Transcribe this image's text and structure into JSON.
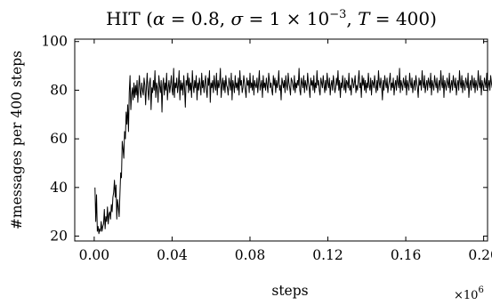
{
  "chart_data": {
    "type": "line",
    "title": {
      "prefix": "HIT (",
      "alpha_sym": "α",
      "alpha_val": " = 0.8, ",
      "sigma_sym": "σ",
      "sigma_val": " = 1 × 10",
      "sigma_exp": "−3",
      "sep": ", ",
      "T_sym": "T",
      "T_val": " = 400)"
    },
    "xlabel": "steps",
    "ylabel": "#messages per 400 steps",
    "x_multiplier": {
      "base": "×10",
      "exp": "6"
    },
    "xlim": [
      -0.01,
      0.202
    ],
    "ylim": [
      18,
      101
    ],
    "x_ticks": [
      0.0,
      0.04,
      0.08,
      0.12,
      0.16,
      0.2
    ],
    "x_tick_labels": [
      "0.00",
      "0.04",
      "0.08",
      "0.12",
      "0.16",
      "0.20"
    ],
    "y_ticks": [
      20,
      40,
      60,
      80,
      100
    ],
    "y_tick_labels": [
      "20",
      "40",
      "60",
      "80",
      "100"
    ],
    "grid": false,
    "series": [
      {
        "x_start": 0.0004,
        "x_step": 0.0004,
        "values": [
          40,
          26,
          37,
          22,
          24,
          21,
          23,
          22,
          26,
          22,
          24,
          25,
          31,
          23,
          28,
          26,
          32,
          25,
          29,
          30,
          27,
          33,
          30,
          36,
          38,
          43,
          36,
          41,
          27,
          35,
          32,
          28,
          37,
          46,
          44,
          59,
          56,
          52,
          63,
          60,
          71,
          66,
          74,
          63,
          79,
          86,
          72,
          78,
          81,
          76,
          83,
          77,
          82,
          78,
          84,
          75,
          81,
          86,
          79,
          77,
          83,
          80,
          78,
          85,
          82,
          74,
          81,
          87,
          80,
          76,
          83,
          85,
          72,
          81,
          79,
          84,
          80,
          88,
          77,
          83,
          81,
          75,
          86,
          82,
          79,
          84,
          71,
          82,
          85,
          78,
          83,
          80,
          87,
          76,
          81,
          84,
          79,
          82,
          86,
          80,
          78,
          89,
          77,
          83,
          81,
          85,
          79,
          82,
          88,
          76,
          84,
          80,
          83,
          78,
          86,
          81,
          73,
          84,
          82,
          87,
          79,
          85,
          80,
          83,
          77,
          88,
          82,
          79,
          84,
          81,
          86,
          76,
          83,
          80,
          85,
          82,
          78,
          87,
          81,
          84,
          79,
          83,
          86,
          80,
          77,
          85,
          82,
          88,
          75,
          83,
          81,
          84,
          79,
          86,
          82,
          80,
          87,
          78,
          84,
          81,
          83,
          89,
          77,
          82,
          85,
          80,
          84,
          79,
          86,
          82,
          81,
          78,
          85,
          83,
          80,
          87,
          76,
          84,
          82,
          79,
          86,
          81,
          83,
          80,
          85,
          78,
          88,
          82,
          84,
          79,
          81,
          86,
          83,
          80,
          77,
          85,
          82,
          84,
          79,
          87,
          81,
          83,
          80,
          86,
          78,
          84,
          82,
          81,
          85,
          79,
          83,
          88,
          80,
          82,
          84,
          77,
          86,
          81,
          83,
          80,
          85,
          82,
          79,
          87,
          84,
          81,
          83,
          80,
          78,
          86,
          82,
          85,
          79,
          84,
          81,
          83,
          88,
          80,
          82,
          76,
          85,
          83,
          81,
          84,
          79,
          86,
          82,
          80,
          87,
          83,
          81,
          78,
          85,
          84,
          82,
          80,
          86,
          79,
          83,
          81,
          84,
          82,
          89,
          80,
          78,
          85,
          83,
          81,
          86,
          79,
          84,
          82,
          80,
          87,
          83,
          81,
          77,
          85,
          82,
          84,
          80,
          86,
          79,
          83,
          81,
          88,
          82,
          84,
          80,
          78,
          85,
          83,
          81,
          86,
          82,
          79,
          84,
          80,
          87,
          83,
          81,
          85,
          78,
          82,
          84,
          80,
          86,
          83,
          79,
          81,
          85,
          82,
          88,
          80,
          84,
          77,
          83,
          81,
          86,
          82,
          80,
          85,
          79,
          84,
          83,
          81,
          87,
          80,
          82,
          78,
          85,
          84,
          81,
          83,
          86,
          79,
          82,
          80,
          84,
          88,
          81,
          83,
          77,
          86,
          82,
          85,
          80,
          84,
          79,
          83,
          81,
          87,
          82,
          80,
          85,
          78,
          84,
          83,
          81,
          86,
          82,
          79,
          84,
          80,
          88,
          83,
          81,
          85,
          82,
          76,
          84,
          80,
          86,
          83,
          81,
          85,
          79,
          82,
          84,
          87,
          80,
          83,
          81,
          85,
          78,
          82,
          84,
          80,
          86,
          83,
          81,
          89,
          79,
          84,
          82,
          80,
          85,
          83,
          81,
          86,
          78,
          84,
          82,
          80,
          87,
          83,
          81,
          85,
          79,
          82,
          84,
          80,
          86,
          83,
          81,
          77,
          85,
          82,
          84,
          80,
          88,
          83,
          81,
          86,
          79,
          82,
          84,
          80,
          85,
          83,
          81,
          87,
          78,
          84,
          82,
          80,
          86,
          83,
          81,
          85,
          79,
          82,
          84,
          80,
          88,
          83,
          81,
          86,
          77,
          84,
          82,
          80,
          85,
          83,
          81,
          87,
          79,
          82,
          84,
          80,
          86,
          83,
          81,
          85,
          78,
          82,
          84,
          80,
          88,
          83,
          81,
          86,
          79,
          84,
          82,
          80,
          85,
          83,
          81,
          87,
          77,
          82,
          84,
          80,
          86,
          83,
          81,
          85,
          79,
          84,
          82,
          80,
          88,
          83,
          81,
          86,
          78,
          84,
          82,
          80,
          85,
          83,
          81,
          87,
          79,
          82,
          84,
          80,
          86,
          83,
          81,
          85,
          76,
          84,
          82,
          80,
          88,
          83,
          81,
          86,
          79,
          82,
          84,
          80,
          85,
          89
        ]
      }
    ]
  }
}
